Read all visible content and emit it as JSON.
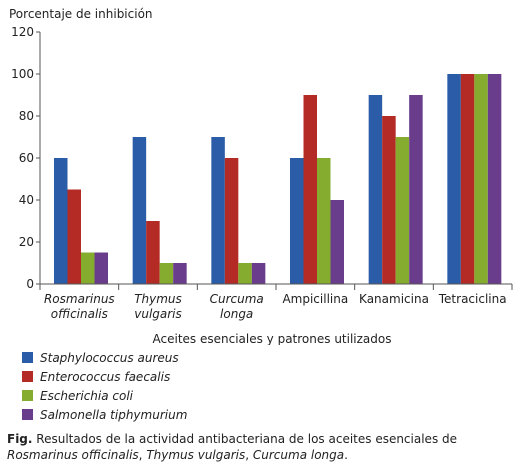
{
  "chart_data": {
    "type": "bar",
    "ylabel": "Porcentaje de inhibición",
    "xlabel": "Aceites esenciales y patrones utilizados",
    "ylim": [
      0,
      120
    ],
    "yticks": [
      "0",
      "20",
      "40",
      "60",
      "80",
      "100",
      "120"
    ],
    "grid": false,
    "legend_position": "bottom-left",
    "categories": [
      {
        "lines": [
          "Rosmarinus",
          "officinalis"
        ],
        "italic": true
      },
      {
        "lines": [
          "Thymus",
          "vulgaris"
        ],
        "italic": true
      },
      {
        "lines": [
          "Curcuma",
          "longa"
        ],
        "italic": true
      },
      {
        "lines": [
          "Ampicillina"
        ],
        "italic": false
      },
      {
        "lines": [
          "Kanamicina"
        ],
        "italic": false
      },
      {
        "lines": [
          "Tetraciclina"
        ],
        "italic": false
      }
    ],
    "series": [
      {
        "name": "Staphylococcus aureus",
        "color": "#2a5ca8",
        "values": [
          60,
          70,
          70,
          60,
          90,
          100
        ]
      },
      {
        "name": "Enterococcus faecalis",
        "color": "#b42a24",
        "values": [
          45,
          30,
          60,
          90,
          80,
          100
        ]
      },
      {
        "name": "Escherichia coli",
        "color": "#86ac2f",
        "values": [
          15,
          10,
          10,
          60,
          70,
          100
        ]
      },
      {
        "name": "Salmonella tiphymurium",
        "color": "#6a3c8c",
        "values": [
          15,
          10,
          10,
          40,
          90,
          100
        ]
      }
    ]
  },
  "caption": {
    "label": "Fig.",
    "text_1": " Resultados de la actividad antibacteriana de los aceites esenciales de ",
    "species_1": "Rosmarinus officinalis",
    "sep_1": ", ",
    "species_2": "Thymus vulgaris",
    "sep_2": ", ",
    "species_3": "Curcuma longa",
    "end": "."
  }
}
